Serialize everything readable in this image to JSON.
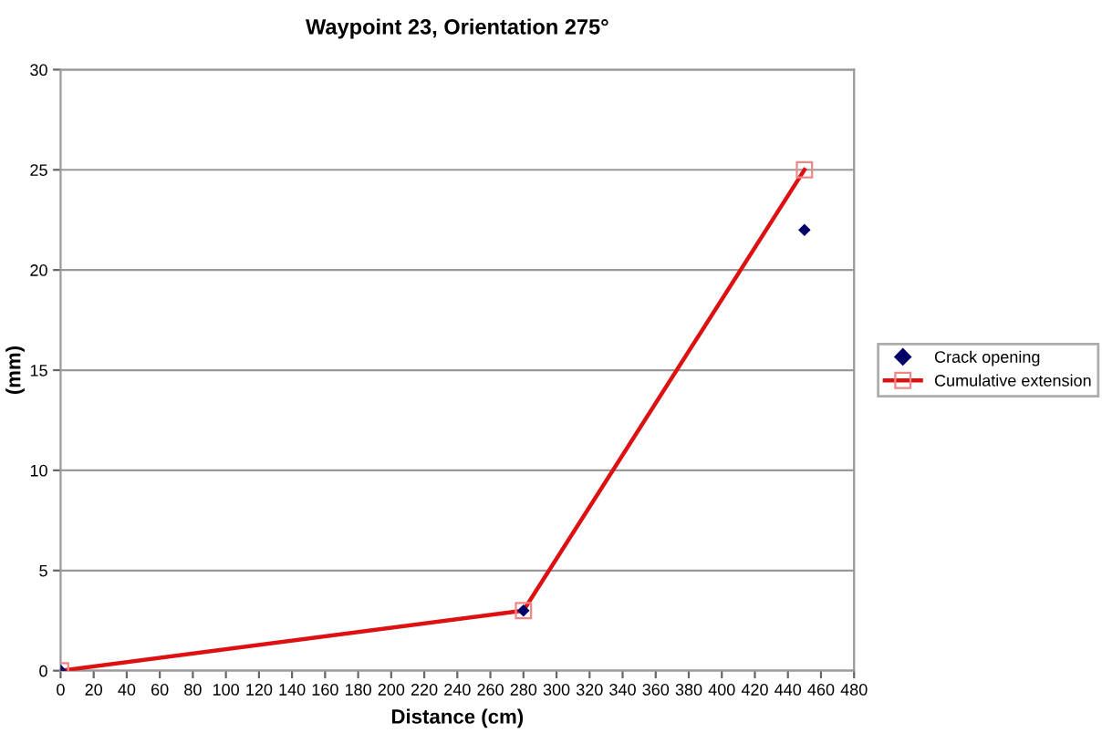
{
  "chart_data": {
    "type": "line",
    "title": "Waypoint 23, Orientation 275°",
    "xlabel": "Distance (cm)",
    "ylabel": "(mm)",
    "xlim": [
      0,
      480
    ],
    "xticks": [
      0,
      20,
      40,
      60,
      80,
      100,
      120,
      140,
      160,
      180,
      200,
      220,
      240,
      260,
      280,
      300,
      320,
      340,
      360,
      380,
      400,
      420,
      440,
      460,
      480
    ],
    "ylim": [
      0,
      30
    ],
    "yticks": [
      0,
      5,
      10,
      15,
      20,
      25,
      30
    ],
    "grid": "y",
    "legend": "right",
    "series": [
      {
        "name": "Crack opening",
        "type": "scatter",
        "marker": "diamond",
        "color": "#000066",
        "x": [
          0,
          280,
          450
        ],
        "values": [
          0,
          3,
          22
        ]
      },
      {
        "name": "Cumulative extension",
        "marker": "square",
        "color": "#dd1111",
        "x": [
          0,
          280,
          450
        ],
        "values": [
          0,
          3,
          25
        ]
      }
    ]
  }
}
